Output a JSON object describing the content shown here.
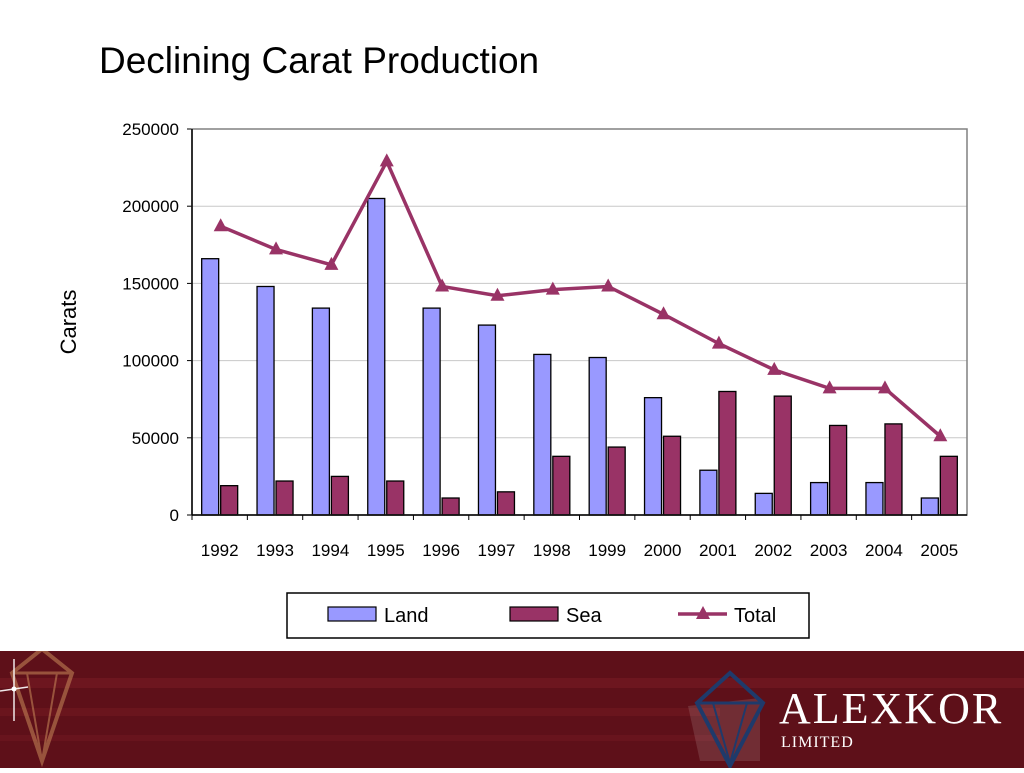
{
  "slide": {
    "title": "Declining Carat Production"
  },
  "brand": {
    "name": "ALEXKOR",
    "subtitle": "LIMITED",
    "colors": {
      "footer": "#5e1019",
      "stripe": "#7a1c24",
      "logo_outline": "#1f3a6b"
    }
  },
  "chart_data": {
    "type": "bar",
    "title": "",
    "xlabel": "",
    "ylabel": "Carats",
    "ylim": [
      0,
      250000
    ],
    "yticks": [
      0,
      50000,
      100000,
      150000,
      200000,
      250000
    ],
    "ytick_labels": [
      "0",
      "50000",
      "100000",
      "150000",
      "200000",
      "250000"
    ],
    "grid": true,
    "legend_position": "bottom",
    "categories": [
      "1992",
      "1993",
      "1994",
      "1995",
      "1996",
      "1997",
      "1998",
      "1999",
      "2000",
      "2001",
      "2002",
      "2003",
      "2004",
      "2005"
    ],
    "series": [
      {
        "name": "Land",
        "type": "bar",
        "color": "#9999ff",
        "values": [
          166000,
          148000,
          134000,
          205000,
          134000,
          123000,
          104000,
          102000,
          76000,
          29000,
          14000,
          21000,
          21000,
          11000
        ]
      },
      {
        "name": "Sea",
        "type": "bar",
        "color": "#993366",
        "values": [
          19000,
          22000,
          25000,
          22000,
          11000,
          15000,
          38000,
          44000,
          51000,
          80000,
          77000,
          58000,
          59000,
          38000
        ]
      },
      {
        "name": "Total",
        "type": "line",
        "color": "#993366",
        "values": [
          187000,
          172000,
          162000,
          229000,
          148000,
          142000,
          146000,
          148000,
          130000,
          111000,
          94000,
          82000,
          82000,
          51000
        ]
      }
    ]
  }
}
